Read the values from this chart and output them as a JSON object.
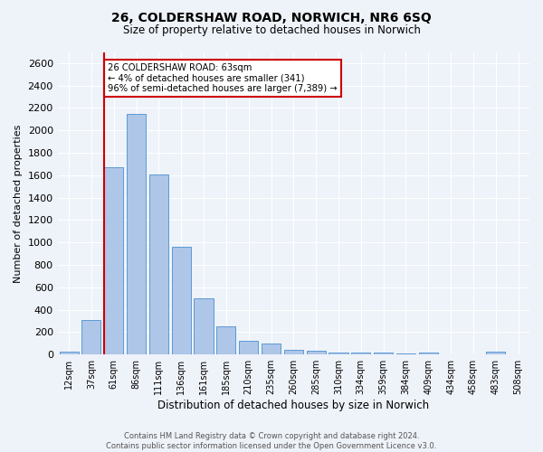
{
  "title_line1": "26, COLDERSHAW ROAD, NORWICH, NR6 6SQ",
  "title_line2": "Size of property relative to detached houses in Norwich",
  "xlabel": "Distribution of detached houses by size in Norwich",
  "ylabel": "Number of detached properties",
  "categories": [
    "12sqm",
    "37sqm",
    "61sqm",
    "86sqm",
    "111sqm",
    "136sqm",
    "161sqm",
    "185sqm",
    "210sqm",
    "235sqm",
    "260sqm",
    "285sqm",
    "310sqm",
    "334sqm",
    "359sqm",
    "384sqm",
    "409sqm",
    "434sqm",
    "458sqm",
    "483sqm",
    "508sqm"
  ],
  "values": [
    25,
    305,
    1670,
    2150,
    1610,
    960,
    500,
    248,
    125,
    100,
    45,
    30,
    18,
    18,
    18,
    10,
    18,
    5,
    5,
    25,
    5
  ],
  "bar_color": "#aec6e8",
  "bar_edge_color": "#5b9bd5",
  "vline_x_index": 2,
  "annotation_line1": "26 COLDERSHAW ROAD: 63sqm",
  "annotation_line2": "← 4% of detached houses are smaller (341)",
  "annotation_line3": "96% of semi-detached houses are larger (7,389) →",
  "annotation_box_color": "#ffffff",
  "annotation_box_edge": "#cc0000",
  "vline_color": "#cc0000",
  "footer_line1": "Contains HM Land Registry data © Crown copyright and database right 2024.",
  "footer_line2": "Contains public sector information licensed under the Open Government Licence v3.0.",
  "ylim": [
    0,
    2700
  ],
  "yticks": [
    0,
    200,
    400,
    600,
    800,
    1000,
    1200,
    1400,
    1600,
    1800,
    2000,
    2200,
    2400,
    2600
  ],
  "bg_color": "#eef2f9",
  "plot_bg_color": "#eef2f9"
}
